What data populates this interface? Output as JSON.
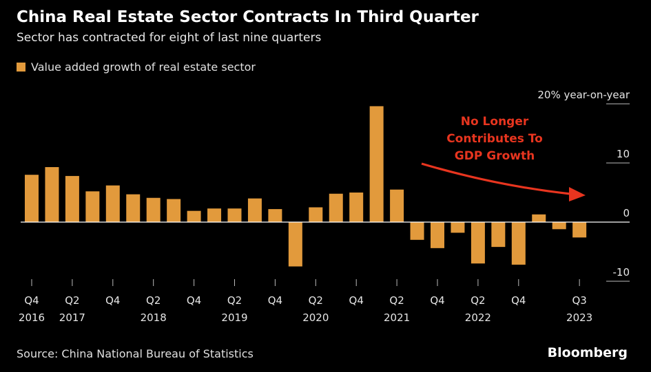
{
  "title": "China Real Estate Sector Contracts In Third Quarter",
  "subtitle": "Sector has contracted for eight of last nine quarters",
  "source": "Source: China National Bureau of Statistics",
  "brand": "Bloomberg",
  "colors": {
    "bar": "#E29A3C",
    "annotation": "#E8351F",
    "background": "#000000"
  },
  "annotation": {
    "lines": [
      "No Longer",
      "Contributes To",
      "GDP Growth"
    ]
  },
  "chart_data": {
    "type": "bar",
    "legend": [
      "Value added growth of real estate sector"
    ],
    "categories": [
      "Q4 2016",
      "Q1 2017",
      "Q2 2017",
      "Q3 2017",
      "Q4 2017",
      "Q1 2018",
      "Q2 2018",
      "Q3 2018",
      "Q4 2018",
      "Q1 2019",
      "Q2 2019",
      "Q3 2019",
      "Q4 2019",
      "Q1 2020",
      "Q2 2020",
      "Q3 2020",
      "Q4 2020",
      "Q1 2021",
      "Q2 2021",
      "Q3 2021",
      "Q4 2021",
      "Q1 2022",
      "Q2 2022",
      "Q3 2022",
      "Q4 2022",
      "Q1 2023",
      "Q2 2023",
      "Q3 2023"
    ],
    "series": [
      {
        "values": [
          8.0,
          9.3,
          7.8,
          5.2,
          6.2,
          4.7,
          4.1,
          3.9,
          1.9,
          2.3,
          2.3,
          4.0,
          2.2,
          -7.5,
          2.5,
          4.8,
          5.0,
          19.6,
          5.5,
          -3.0,
          -4.4,
          -1.8,
          -7.0,
          -4.2,
          -7.2,
          1.3,
          -1.2,
          -2.6
        ]
      }
    ],
    "ylim": [
      -10,
      20
    ],
    "yticks": [
      -10,
      0,
      10,
      20
    ],
    "ytick_labels": [
      "-10",
      "0",
      "10",
      "20% year-on-year"
    ],
    "xticks": [
      {
        "index": 0,
        "quarter": "Q4",
        "year": "2016"
      },
      {
        "index": 2,
        "quarter": "Q2",
        "year": "2017"
      },
      {
        "index": 4,
        "quarter": "Q4",
        "year": ""
      },
      {
        "index": 6,
        "quarter": "Q2",
        "year": "2018"
      },
      {
        "index": 8,
        "quarter": "Q4",
        "year": ""
      },
      {
        "index": 10,
        "quarter": "Q2",
        "year": "2019"
      },
      {
        "index": 12,
        "quarter": "Q4",
        "year": ""
      },
      {
        "index": 14,
        "quarter": "Q2",
        "year": "2020"
      },
      {
        "index": 16,
        "quarter": "Q4",
        "year": ""
      },
      {
        "index": 18,
        "quarter": "Q2",
        "year": "2021"
      },
      {
        "index": 20,
        "quarter": "Q4",
        "year": ""
      },
      {
        "index": 22,
        "quarter": "Q2",
        "year": "2022"
      },
      {
        "index": 24,
        "quarter": "Q4",
        "year": ""
      },
      {
        "index": 27,
        "quarter": "Q3",
        "year": "2023"
      }
    ]
  }
}
